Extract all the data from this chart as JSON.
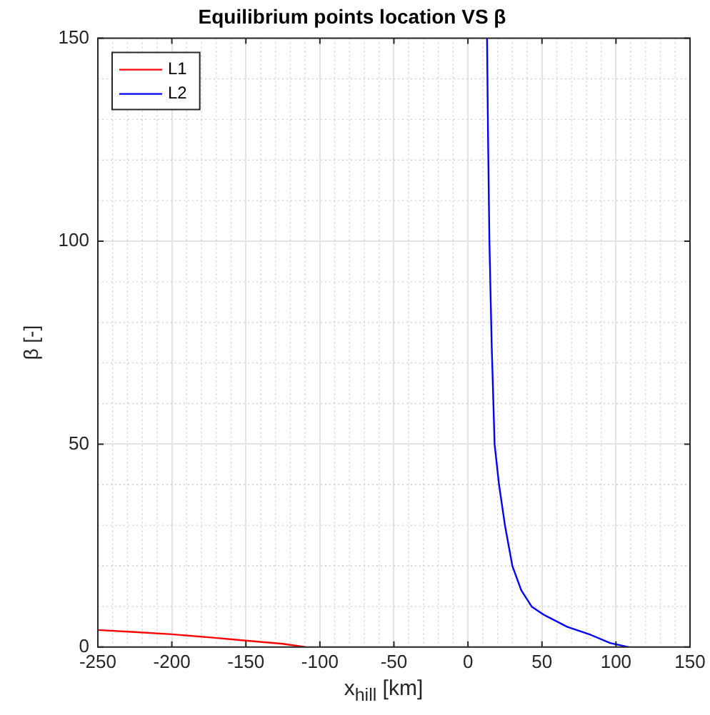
{
  "chart_data": {
    "type": "line",
    "title": "Equilibrium points location VS β",
    "xlabel": "x$_{hill}$ [km]",
    "ylabel": "β [-]",
    "series": [
      {
        "name": "L1",
        "color": "#ff0000",
        "x": [
          -250,
          -225,
          -200,
          -175,
          -150,
          -125,
          -110
        ],
        "values": [
          4.2,
          3.7,
          3.15,
          2.4,
          1.6,
          0.8,
          0
        ]
      },
      {
        "name": "L2",
        "color": "#0000ff",
        "x": [
          12.9,
          13.6,
          14.5,
          16,
          18,
          21,
          25,
          30,
          36,
          43,
          51,
          67,
          83,
          96,
          108.7
        ],
        "values": [
          150,
          125,
          100,
          75,
          50,
          40,
          30,
          20,
          14,
          10,
          8,
          5,
          3,
          1,
          0
        ]
      }
    ],
    "xlim": [
      -250,
      150
    ],
    "xticks": [
      -250,
      -200,
      -150,
      -100,
      -50,
      0,
      50,
      100,
      150
    ],
    "ylim": [
      0,
      150
    ],
    "yticks": [
      0,
      50,
      100,
      150
    ],
    "grid": true,
    "legend": "top left",
    "marker": "none",
    "line_style": "solid"
  }
}
